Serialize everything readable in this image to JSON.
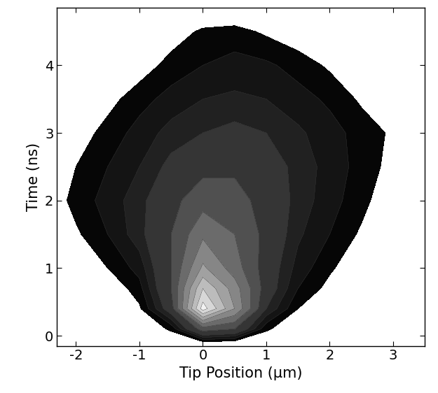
{
  "chart_data": {
    "type": "contour",
    "x_label": "Tip Position (µm)",
    "y_label": "Time (ns)",
    "x": [
      -2.5,
      -2,
      -1.5,
      -1,
      -0.5,
      0,
      0.5,
      1,
      1.5,
      2,
      2.5,
      3,
      3.5
    ],
    "y": [
      -0.1,
      0.1,
      0.4,
      0.7,
      1.0,
      1.5,
      2.0,
      2.5,
      3.0,
      3.5,
      4.0,
      4.5,
      4.8
    ],
    "z": [
      [
        0,
        0,
        0,
        0,
        0,
        0.03,
        0.02,
        0,
        0,
        0,
        0,
        0,
        0
      ],
      [
        0,
        0,
        0,
        0,
        0.06,
        0.35,
        0.3,
        0.06,
        0,
        0,
        0,
        0,
        0
      ],
      [
        0,
        0,
        0,
        0.04,
        0.25,
        0.95,
        0.6,
        0.2,
        0.05,
        0,
        0,
        0,
        0
      ],
      [
        0,
        0,
        0,
        0.08,
        0.3,
        0.8,
        0.55,
        0.25,
        0.1,
        0.03,
        0,
        0,
        0
      ],
      [
        0,
        0,
        0.05,
        0.12,
        0.3,
        0.62,
        0.45,
        0.25,
        0.13,
        0.06,
        0,
        0,
        0
      ],
      [
        0,
        0.04,
        0.1,
        0.18,
        0.3,
        0.48,
        0.4,
        0.27,
        0.16,
        0.1,
        0.04,
        0,
        0
      ],
      [
        0,
        0.07,
        0.12,
        0.18,
        0.27,
        0.36,
        0.34,
        0.26,
        0.18,
        0.12,
        0.07,
        0,
        0
      ],
      [
        0,
        0.05,
        0.1,
        0.15,
        0.22,
        0.27,
        0.28,
        0.24,
        0.18,
        0.13,
        0.08,
        0.03,
        0
      ],
      [
        0,
        0.02,
        0.07,
        0.12,
        0.17,
        0.2,
        0.22,
        0.2,
        0.16,
        0.12,
        0.08,
        0.04,
        0
      ],
      [
        0,
        0,
        0.03,
        0.08,
        0.12,
        0.15,
        0.16,
        0.15,
        0.12,
        0.09,
        0.04,
        0,
        0
      ],
      [
        0,
        0,
        0,
        0.02,
        0.07,
        0.1,
        0.12,
        0.11,
        0.08,
        0.04,
        0,
        0,
        0
      ],
      [
        0,
        0,
        0,
        0,
        0.02,
        0.06,
        0.07,
        0.04,
        0.01,
        0,
        0,
        0,
        0
      ],
      [
        0,
        0,
        0,
        0,
        0,
        0,
        0,
        0,
        0,
        0,
        0,
        0,
        0
      ]
    ],
    "levels": [
      0.05,
      0.1,
      0.15,
      0.2,
      0.3,
      0.4,
      0.5,
      0.6,
      0.7,
      0.8,
      0.9,
      1.0
    ],
    "color": "gray",
    "xlim": [
      -2.3,
      3.5
    ],
    "xticks": [
      -2,
      -1,
      0,
      1,
      2,
      3
    ],
    "ylim": [
      -0.15,
      4.85
    ],
    "yticks": [
      0,
      1,
      2,
      3,
      4
    ],
    "grid": false
  }
}
